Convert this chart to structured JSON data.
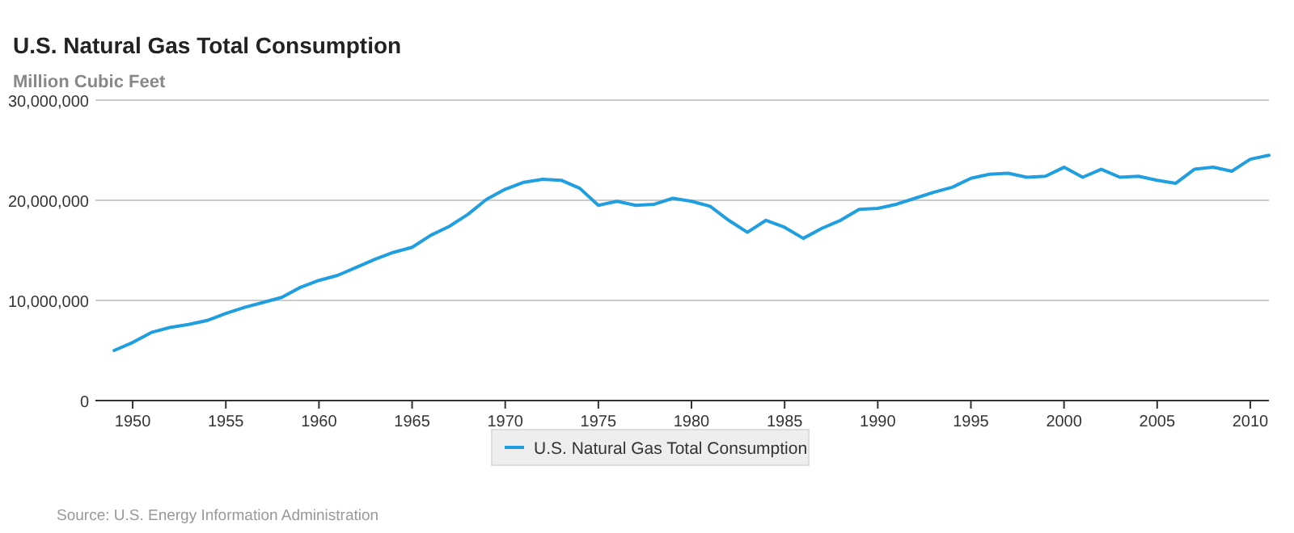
{
  "chart_data": {
    "type": "line",
    "title": "U.S. Natural Gas Total Consumption",
    "ylabel": "Million Cubic Feet",
    "x": [
      1949,
      1950,
      1951,
      1952,
      1953,
      1954,
      1955,
      1956,
      1957,
      1958,
      1959,
      1960,
      1961,
      1962,
      1963,
      1964,
      1965,
      1966,
      1967,
      1968,
      1969,
      1970,
      1971,
      1972,
      1973,
      1974,
      1975,
      1976,
      1977,
      1978,
      1979,
      1980,
      1981,
      1982,
      1983,
      1984,
      1985,
      1986,
      1987,
      1988,
      1989,
      1990,
      1991,
      1992,
      1993,
      1994,
      1995,
      1996,
      1997,
      1998,
      1999,
      2000,
      2001,
      2002,
      2003,
      2004,
      2005,
      2006,
      2007,
      2008,
      2009,
      2010,
      2011
    ],
    "series": [
      {
        "name": "U.S. Natural Gas Total Consumption",
        "color": "#1f9ee0",
        "values": [
          5000000,
          5800000,
          6800000,
          7300000,
          7600000,
          8000000,
          8700000,
          9300000,
          9800000,
          10300000,
          11300000,
          12000000,
          12500000,
          13300000,
          14100000,
          14800000,
          15300000,
          16500000,
          17400000,
          18600000,
          20100000,
          21100000,
          21800000,
          22100000,
          22000000,
          21200000,
          19500000,
          19900000,
          19500000,
          19600000,
          20200000,
          19900000,
          19400000,
          18000000,
          16800000,
          18000000,
          17300000,
          16200000,
          17200000,
          18000000,
          19100000,
          19200000,
          19600000,
          20200000,
          20800000,
          21300000,
          22200000,
          22600000,
          22700000,
          22300000,
          22400000,
          23300000,
          22300000,
          23100000,
          22300000,
          22400000,
          22000000,
          21700000,
          23100000,
          23300000,
          22900000,
          24100000,
          24500000
        ]
      }
    ],
    "xlim": [
      1948,
      2011
    ],
    "xticks": [
      1950,
      1955,
      1960,
      1965,
      1970,
      1975,
      1980,
      1985,
      1990,
      1995,
      2000,
      2005,
      2010
    ],
    "ylim": [
      0,
      30000000
    ],
    "yticks": [
      0,
      {
        "value": 10000000,
        "label": "10,000,000"
      },
      {
        "value": 20000000,
        "label": "20,000,000"
      },
      {
        "value": 30000000,
        "label": "30,000,000"
      }
    ],
    "grid": "y",
    "legend": "bottom",
    "marker": "none",
    "line_style": "solid",
    "annotations": [
      "Source: U.S. Energy Information Administration"
    ]
  }
}
